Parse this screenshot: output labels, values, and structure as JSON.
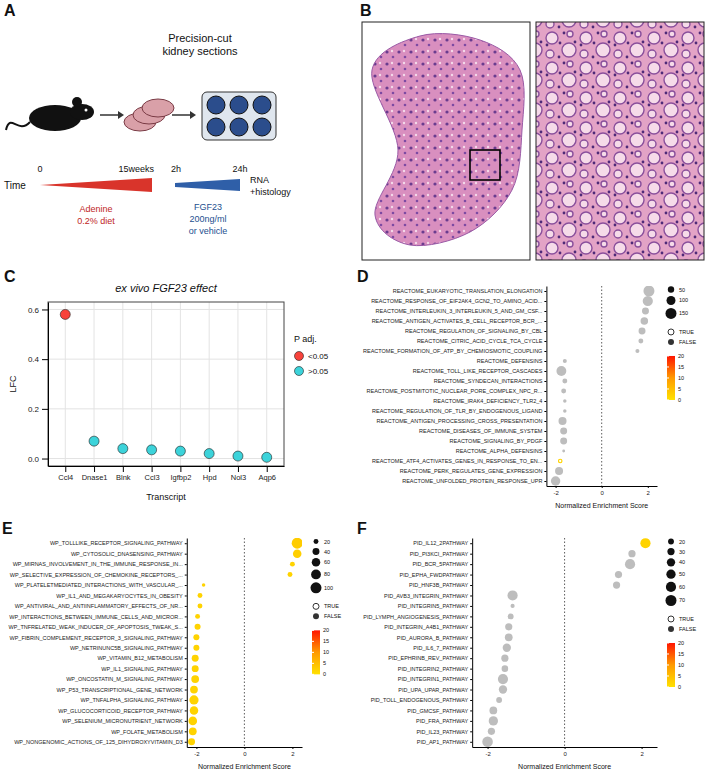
{
  "diagram": {
    "panel": "A",
    "title": [
      "Precision-cut",
      "kidney sections"
    ],
    "time_label": "Time",
    "timeline_ticks": [
      "0",
      "15weeks",
      "2h",
      "24h"
    ],
    "endpoint": [
      "RNA",
      "+histology"
    ],
    "treatment1": [
      "Adenine",
      "0.2% diet"
    ],
    "treatment2": [
      "FGF23",
      "200ng/ml",
      "or vehicle"
    ]
  },
  "image_panel": {
    "panel": "B"
  },
  "chart_data": [
    {
      "panel": "C",
      "type": "scatter",
      "title": "ex vivo FGF23 effect",
      "xlabel": "Transcript",
      "ylabel": "LFC",
      "categories": [
        "Ccl4",
        "Dnase1",
        "Blnk",
        "Ccl3",
        "Igfbp2",
        "Hpd",
        "Nol3",
        "Aqp6"
      ],
      "series": [
        {
          "name": "<0.05",
          "color": "#f8433b",
          "values": [
            0.58,
            null,
            null,
            null,
            null,
            null,
            null,
            null
          ]
        },
        {
          "name": ">0.05",
          "color": "#3cd3da",
          "values": [
            null,
            0.07,
            0.04,
            0.035,
            0.03,
            0.02,
            0.01,
            0.005
          ]
        }
      ],
      "legend_title": "P adj.",
      "legend": "right",
      "ylim": [
        -0.03,
        0.63
      ],
      "yticks": [
        {
          "value": 0,
          "label": "0.0"
        },
        {
          "value": 0.2,
          "label": "0.2"
        },
        {
          "value": 0.4,
          "label": "0.4"
        },
        {
          "value": 0.6,
          "label": "0.6"
        }
      ],
      "grid": true
    },
    {
      "panel": "D",
      "type": "dot",
      "categories": [
        "REACTOME_EUKARYOTIC_TRANSLATION_ELONGATION",
        "REACTOME_RESPONSE_OF_EIF2AK4_GCN2_TO_AMINO_ACID...",
        "REACTOME_INTERLEUKIN_3_INTERLEUKIN_5_AND_GM_CSF...",
        "REACTOME_ANTIGEN_ACTIVATES_B_CELL_RECEPTOR_BCR_...",
        "REACTOME_REGULATION_OF_SIGNALING_BY_CBL",
        "REACTOME_CITRIC_ACID_CYCLE_TCA_CYCLE",
        "REACTOME_FORMATION_OF_ATP_BY_CHEMIOSMOTIC_COUPLING",
        "REACTOME_DEFENSINS",
        "REACTOME_TOLL_LIKE_RECEPTOR_CASCADES",
        "REACTOME_SYNDECAN_INTERACTIONS",
        "REACTOME_POSTMITOTIC_NUCLEAR_PORE_COMPLEX_NPC_R...",
        "REACTOME_IRAK4_DEFICIENCY_TLR2_4",
        "REACTOME_REGULATION_OF_TLR_BY_ENDOGENOUS_LIGAND",
        "REACTOME_ANTIGEN_PROCESSING_CROSS_PRESENTATION",
        "REACTOME_DISEASES_OF_IMMUNE_SYSTEM",
        "REACTOME_SIGNALING_BY_PDGF",
        "REACTOME_ALPHA_DEFENSINS",
        "REACTOME_ATF4_ACTIVATES_GENES_IN_RESPONSE_TO_EN...",
        "REACTOME_PERK_REGULATES_GENE_EXPRESSION",
        "REACTOME_UNFOLDED_PROTEIN_RESPONSE_UPR"
      ],
      "values": [
        2.05,
        2.0,
        1.9,
        1.85,
        1.75,
        1.7,
        1.55,
        -1.6,
        -1.75,
        -1.6,
        -1.65,
        -1.6,
        -1.6,
        -1.7,
        -1.65,
        -1.65,
        -1.65,
        -1.8,
        -1.85,
        -2.0
      ],
      "sizes": [
        150,
        130,
        60,
        70,
        60,
        30,
        20,
        20,
        120,
        30,
        30,
        15,
        15,
        80,
        60,
        60,
        10,
        15,
        80,
        110
      ],
      "color_values": [
        null,
        null,
        null,
        null,
        null,
        null,
        null,
        null,
        null,
        null,
        null,
        null,
        null,
        null,
        null,
        null,
        null,
        2,
        null,
        null
      ],
      "significant": [
        false,
        false,
        false,
        false,
        false,
        false,
        false,
        false,
        false,
        false,
        false,
        false,
        false,
        false,
        false,
        false,
        false,
        true,
        false,
        false
      ],
      "xlabel": "Normalized Enrichment Score",
      "xlim": [
        -2.4,
        2.4
      ],
      "xticks": [
        -2,
        0,
        2
      ],
      "reference_x": 0,
      "size_legend": [
        50,
        100,
        150
      ],
      "shape_legend": [
        "TRUE",
        "FALSE"
      ],
      "colorbar_lim": [
        0,
        20
      ],
      "colorbar_ticks": [
        0,
        5,
        10,
        15,
        20
      ]
    },
    {
      "panel": "E",
      "type": "dot",
      "categories": [
        "WP_TOLLLIKE_RECEPTOR_SIGNALING_PATHWAY",
        "WP_CYTOSOLIC_DNASENSING_PATHWAY",
        "WP_MIRNAS_INVOLVEMENT_IN_THE_IMMUNE_RESPONSE_IN...",
        "WP_SELECTIVE_EXPRESSION_OF_CHEMOKINE_RECEPTORS_...",
        "WP_PLATELETMEDIATED_INTERACTIONS_WITH_VASCULAR_...",
        "WP_IL1_AND_MEGAKARYOCYTES_IN_OBESITY",
        "WP_ANTIVIRAL_AND_ANTIINFLAMMATORY_EFFECTS_OF_NR...",
        "WP_INTERACTIONS_BETWEEN_IMMUNE_CELLS_AND_MICROR...",
        "WP_TNFRELATED_WEAK_INDUCER_OF_APOPTOSIS_TWEAK_S...",
        "WP_FIBRIN_COMPLEMENT_RECEPTOR_3_SIGNALING_PATHWAY",
        "WP_NETRINUNC5B_SIGNALING_PATHWAY",
        "WP_VITAMIN_B12_METABOLISM",
        "WP_IL1_SIGNALING_PATHWAY",
        "WP_ONCOSTATIN_M_SIGNALING_PATHWAY",
        "WP_P53_TRANSCRIPTIONAL_GENE_NETWORK",
        "WP_TNFALPHA_SIGNALING_PATHWAY",
        "WP_GLUCOCORTICOID_RECEPTOR_PATHWAY",
        "WP_SELENIUM_MICRONUTRIENT_NETWORK",
        "WP_FOLATE_METABOLISM",
        "WP_NONGENOMIC_ACTIONS_OF_125_DIHYDROXYVITAMIN_D3"
      ],
      "values": [
        2.2,
        2.2,
        2.0,
        1.9,
        -1.7,
        -1.85,
        -1.85,
        -1.95,
        -1.95,
        -2.0,
        -2.0,
        -2.05,
        -2.05,
        -2.05,
        -2.1,
        -2.1,
        -2.1,
        -2.15,
        -2.15,
        -2.2
      ],
      "sizes": [
        100,
        60,
        20,
        20,
        10,
        20,
        20,
        20,
        30,
        30,
        30,
        40,
        40,
        50,
        50,
        70,
        60,
        60,
        50,
        40
      ],
      "color_values": [
        3,
        2.5,
        2,
        2,
        2,
        2,
        2,
        2,
        2,
        2,
        2,
        2,
        2,
        2,
        2,
        2,
        2,
        2,
        2,
        2
      ],
      "significant": [
        false,
        false,
        false,
        false,
        false,
        false,
        false,
        false,
        false,
        false,
        false,
        false,
        false,
        false,
        false,
        false,
        false,
        false,
        false,
        false
      ],
      "xlabel": "Normalized Enrichment Score",
      "xlim": [
        -2.4,
        2.4
      ],
      "xticks": [
        -2,
        0,
        2
      ],
      "reference_x": 0,
      "size_legend": [
        20,
        40,
        60,
        80,
        100
      ],
      "shape_legend": [
        "TRUE",
        "FALSE"
      ],
      "colorbar_lim": [
        0,
        20
      ],
      "colorbar_ticks": [
        0,
        5,
        10,
        15,
        20
      ]
    },
    {
      "panel": "F",
      "type": "dot",
      "categories": [
        "PID_IL12_2PATHWAY",
        "PID_PI3KCI_PATHWAY",
        "PID_BCR_5PATHWAY",
        "PID_EPHA_FWDPATHWAY",
        "PID_HNF3B_PATHWAY",
        "PID_AVB3_INTEGRIN_PATHWAY",
        "PID_INTEGRIN5_PATHWAY",
        "PID_LYMPH_ANGIOGENESIS_PATHWAY",
        "PID_INTEGRIN_A4B1_PATHWAY",
        "PID_AURORA_B_PATHWAY",
        "PID_IL6_7_PATHWAY",
        "PID_EPHRINB_REV_PATHWAY",
        "PID_INTEGRIN2_PATHWAY",
        "PID_INTEGRIN1_PATHWAY",
        "PID_UPA_UPAR_PATHWAY",
        "PID_TOLL_ENDOGENOUS_PATHWAY",
        "PID_GMCSF_PATHWAY",
        "PID_FRA_PATHWAY",
        "PID_IL23_PATHWAY",
        "PID_AP1_PATHWAY"
      ],
      "values": [
        2.1,
        1.75,
        1.7,
        1.4,
        1.35,
        -1.35,
        -1.35,
        -1.4,
        -1.45,
        -1.45,
        -1.5,
        -1.55,
        -1.55,
        -1.6,
        -1.6,
        -1.7,
        -1.85,
        -1.85,
        -1.9,
        -2.0
      ],
      "sizes": [
        60,
        30,
        60,
        30,
        30,
        60,
        10,
        20,
        30,
        35,
        40,
        30,
        25,
        60,
        40,
        20,
        35,
        50,
        30,
        65
      ],
      "color_values": [
        2,
        null,
        null,
        null,
        null,
        null,
        null,
        null,
        null,
        null,
        null,
        null,
        null,
        null,
        null,
        null,
        null,
        null,
        null,
        null
      ],
      "significant": [
        false,
        false,
        false,
        false,
        false,
        false,
        false,
        false,
        false,
        false,
        false,
        false,
        false,
        false,
        false,
        false,
        false,
        false,
        false,
        false
      ],
      "xlabel": "Normalized Enrichment Score",
      "xlim": [
        -2.4,
        2.4
      ],
      "xticks": [
        -2,
        0,
        2
      ],
      "reference_x": 0,
      "size_legend": [
        20,
        30,
        40,
        50,
        60,
        70
      ],
      "shape_legend": [
        "TRUE",
        "FALSE"
      ],
      "colorbar_lim": [
        0,
        20
      ],
      "colorbar_ticks": [
        0,
        5,
        10,
        15,
        20
      ]
    }
  ]
}
